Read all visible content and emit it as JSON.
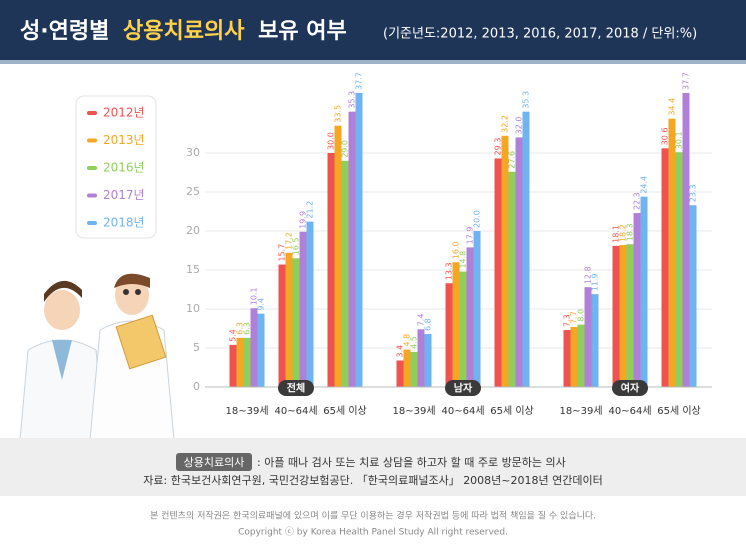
{
  "header": {
    "title_parts": [
      "성·연령별",
      "상용치료의사",
      "보유 여부"
    ],
    "subtitle": "(기준년도:2012, 2013, 2016, 2017, 2018 / 단위:%)"
  },
  "chart_data": {
    "type": "bar",
    "groups": [
      "전체",
      "남자",
      "여자"
    ],
    "categories": [
      "18~39세",
      "40~64세",
      "65세 이상",
      "18~39세",
      "40~64세",
      "65세 이상",
      "18~39세",
      "40~64세",
      "65세 이상"
    ],
    "series": [
      {
        "name": "2012년",
        "color": "#f0524f",
        "values": [
          5.4,
          15.7,
          30,
          3.4,
          13.3,
          29.3,
          7.3,
          18.1,
          30.6
        ],
        "value_labels": [
          "5.4",
          "15.7",
          "30.0",
          "3.4",
          "13.3",
          "29.3",
          "7.3",
          "18.1",
          "30.6"
        ]
      },
      {
        "name": "2013년",
        "color": "#f5a623",
        "values": [
          6.3,
          17.2,
          33.5,
          4.8,
          16,
          32.2,
          7.7,
          18.2,
          34.4
        ],
        "value_labels": [
          "6.3",
          "17.2",
          "33.5",
          "4.8",
          "16.0",
          "32.2",
          "7.7",
          "18.2",
          "34.4"
        ]
      },
      {
        "name": "2016년",
        "color": "#8fce5a",
        "values": [
          6.3,
          16.5,
          29,
          4.5,
          14.8,
          27.6,
          8,
          18.3,
          30.1
        ],
        "value_labels": [
          "6.3",
          "16.5",
          "29.0",
          "4.5",
          "14.8",
          "27.6",
          "8.0",
          "18.3",
          "30.1"
        ]
      },
      {
        "name": "2017년",
        "color": "#b07fd8",
        "values": [
          10.1,
          19.9,
          35.3,
          7.4,
          17.9,
          32,
          12.8,
          22.3,
          37.7
        ],
        "value_labels": [
          "10.1",
          "19.9",
          "35.3",
          "7.4",
          "17.9",
          "32.0",
          "12.8",
          "22.3",
          "37.7"
        ]
      },
      {
        "name": "2018년",
        "color": "#6fb3f0",
        "values": [
          9.4,
          21.2,
          37.7,
          6.8,
          20,
          35.3,
          11.9,
          24.4,
          23.3
        ],
        "value_labels": [
          "9.4",
          "21.2",
          "37.7",
          "6.8",
          "20.0",
          "35.3",
          "11.9",
          "24.4",
          "23.3"
        ]
      }
    ],
    "ylim": [
      0,
      40
    ],
    "yticks": [
      0,
      5,
      10,
      15,
      20,
      25,
      30
    ],
    "grid": true
  },
  "note": {
    "tag": "상용치료의사",
    "definition": ": 아플 때나 검사 또는 치료 상담을 하고자 할 때 주로 방문하는 의사",
    "source": "자료: 한국보건사회연구원, 국민건강보험공단. 「한국의료패널조사」 2008년~2018년 연간데이터"
  },
  "footer": {
    "line1": "본 컨텐츠의 저작권은 한국의료패널에 있으며 이를 무단 이용하는 경우 저작권법 등에 따라 법적 책임을 질 수 있습니다.",
    "line2": "Copyright ⓒ by Korea Health Panel Study All right reserved."
  }
}
